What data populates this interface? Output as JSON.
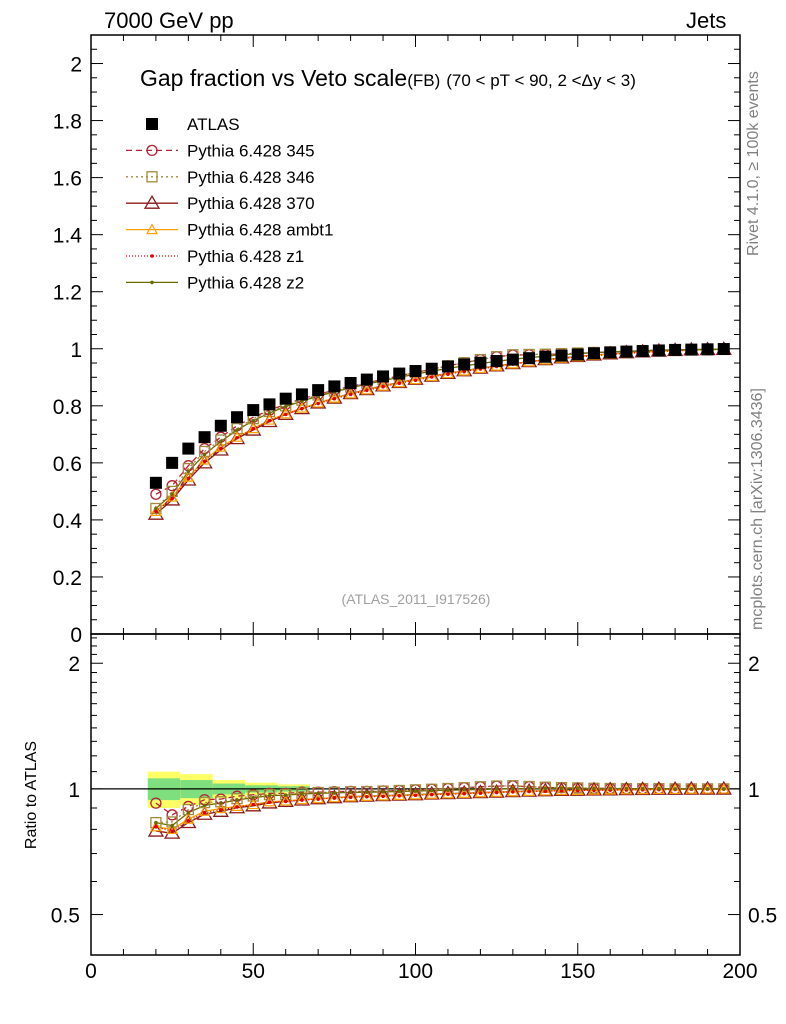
{
  "header": {
    "left": "7000 GeV pp",
    "right": "Jets"
  },
  "side_labels": {
    "rivet": "Rivet 4.1.0, ≥ 100k events",
    "mcplots": "mcplots.cern.ch [arXiv:1306.3436]"
  },
  "chart_data": {
    "type": "scatter",
    "title": "Gap fraction vs Veto scale",
    "title_tag": "(FB)",
    "subtitle": "(70 < pT <  90, 2 <Δy < 3)",
    "watermark": "(ATLAS_2011_I917526)",
    "xlabel": "",
    "ylabel_main": "",
    "ylabel_ratio": "Ratio to ATLAS",
    "xlim": [
      0,
      200
    ],
    "ylim_main": [
      0,
      2.1
    ],
    "ylim_ratio": [
      0.4,
      2.35
    ],
    "x_ticks": [
      "0",
      "50",
      "100",
      "150",
      "200"
    ],
    "y_ticks_main": [
      "0",
      "0.2",
      "0.4",
      "0.6",
      "0.8",
      "1",
      "1.2",
      "1.4",
      "1.6",
      "1.8",
      "2"
    ],
    "y_ticks_ratio": [
      "0.5",
      "1",
      "2"
    ],
    "x": [
      20,
      25,
      30,
      35,
      40,
      45,
      50,
      55,
      60,
      65,
      70,
      75,
      80,
      85,
      90,
      95,
      100,
      105,
      110,
      115,
      120,
      125,
      130,
      135,
      140,
      145,
      150,
      155,
      160,
      165,
      170,
      175,
      180,
      185,
      190,
      195
    ],
    "data": {
      "name": "ATLAS",
      "color": "#000000",
      "values": [
        0.53,
        0.6,
        0.65,
        0.69,
        0.73,
        0.76,
        0.785,
        0.805,
        0.825,
        0.84,
        0.855,
        0.868,
        0.88,
        0.892,
        0.903,
        0.913,
        0.922,
        0.93,
        0.938,
        0.945,
        0.951,
        0.957,
        0.962,
        0.967,
        0.972,
        0.976,
        0.98,
        0.984,
        0.987,
        0.99,
        0.992,
        0.994,
        0.996,
        0.997,
        0.998,
        0.999
      ]
    },
    "series": [
      {
        "name": "Pythia 6.428 345",
        "color": "#b22234",
        "marker": "circle",
        "dash": "6,4",
        "values": [
          0.49,
          0.52,
          0.59,
          0.65,
          0.69,
          0.73,
          0.76,
          0.785,
          0.805,
          0.825,
          0.84,
          0.855,
          0.868,
          0.88,
          0.893,
          0.905,
          0.917,
          0.928,
          0.94,
          0.951,
          0.962,
          0.972,
          0.978,
          0.979,
          0.98,
          0.982,
          0.984,
          0.987,
          0.989,
          0.991,
          0.993,
          0.995,
          0.996,
          0.997,
          0.998,
          0.999
        ]
      },
      {
        "name": "Pythia 6.428 346",
        "color": "#a08a3c",
        "marker": "square",
        "dash": "2,3",
        "values": [
          0.44,
          0.5,
          0.58,
          0.64,
          0.68,
          0.72,
          0.755,
          0.78,
          0.8,
          0.82,
          0.838,
          0.852,
          0.866,
          0.879,
          0.892,
          0.905,
          0.917,
          0.928,
          0.94,
          0.951,
          0.962,
          0.972,
          0.979,
          0.98,
          0.981,
          0.983,
          0.985,
          0.987,
          0.989,
          0.991,
          0.993,
          0.995,
          0.996,
          0.997,
          0.998,
          0.999
        ]
      },
      {
        "name": "Pythia 6.428 370",
        "color": "#8b1a1a",
        "marker": "triangle",
        "dash": "",
        "values": [
          0.42,
          0.47,
          0.54,
          0.6,
          0.645,
          0.685,
          0.715,
          0.745,
          0.77,
          0.79,
          0.81,
          0.827,
          0.843,
          0.857,
          0.87,
          0.882,
          0.893,
          0.904,
          0.914,
          0.923,
          0.932,
          0.94,
          0.948,
          0.955,
          0.962,
          0.968,
          0.973,
          0.978,
          0.982,
          0.986,
          0.989,
          0.992,
          0.994,
          0.996,
          0.997,
          0.998
        ]
      },
      {
        "name": "Pythia 6.428 ambt1",
        "color": "#ff9f00",
        "marker": "triangle-small",
        "dash": "",
        "values": [
          0.43,
          0.48,
          0.55,
          0.61,
          0.655,
          0.69,
          0.72,
          0.75,
          0.772,
          0.792,
          0.81,
          0.827,
          0.842,
          0.856,
          0.869,
          0.881,
          0.892,
          0.903,
          0.913,
          0.922,
          0.931,
          0.939,
          0.947,
          0.954,
          0.961,
          0.967,
          0.972,
          0.977,
          0.981,
          0.985,
          0.988,
          0.991,
          0.993,
          0.995,
          0.997,
          0.998
        ]
      },
      {
        "name": "Pythia 6.428 z1",
        "color": "#e00000",
        "marker": "dot",
        "dash": "1,2",
        "values": [
          0.43,
          0.475,
          0.545,
          0.605,
          0.65,
          0.688,
          0.72,
          0.748,
          0.77,
          0.79,
          0.808,
          0.825,
          0.84,
          0.854,
          0.867,
          0.879,
          0.89,
          0.901,
          0.911,
          0.92,
          0.929,
          0.938,
          0.946,
          0.953,
          0.96,
          0.966,
          0.971,
          0.976,
          0.98,
          0.984,
          0.987,
          0.99,
          0.993,
          0.995,
          0.997,
          0.998
        ]
      },
      {
        "name": "Pythia 6.428 z2",
        "color": "#6b6b00",
        "marker": "dot",
        "dash": "",
        "values": [
          0.44,
          0.49,
          0.57,
          0.63,
          0.675,
          0.715,
          0.748,
          0.775,
          0.797,
          0.817,
          0.834,
          0.849,
          0.863,
          0.876,
          0.888,
          0.9,
          0.911,
          0.921,
          0.931,
          0.94,
          0.948,
          0.956,
          0.963,
          0.969,
          0.974,
          0.979,
          0.983,
          0.986,
          0.989,
          0.991,
          0.993,
          0.995,
          0.996,
          0.997,
          0.998,
          0.999
        ]
      }
    ],
    "ratio_band": {
      "name": "ATLAS uncertainty",
      "color_inner": "#7fdf7f",
      "color_outer": "#ffff66",
      "x_ranges": [
        [
          17.5,
          27.5
        ],
        [
          27.5,
          37.5
        ],
        [
          37.5,
          47.5
        ],
        [
          47.5,
          57.5
        ],
        [
          57.5,
          67.5
        ]
      ],
      "inner": [
        0.06,
        0.05,
        0.03,
        0.02,
        0.015
      ],
      "outer": [
        0.1,
        0.085,
        0.05,
        0.035,
        0.025
      ]
    }
  }
}
